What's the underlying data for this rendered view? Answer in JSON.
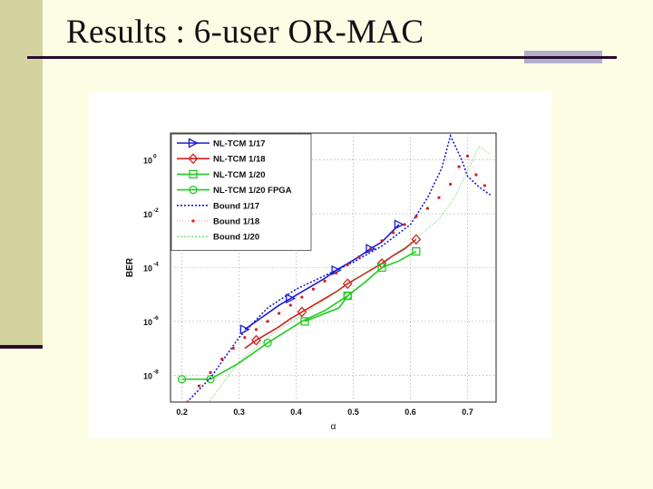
{
  "slide": {
    "title": "Results : 6-user OR-MAC"
  },
  "chart_data": {
    "type": "line",
    "xlabel": "α",
    "ylabel": "BER",
    "xlim": [
      0.18,
      0.75
    ],
    "ylim_log10": [
      -9,
      1
    ],
    "y_scale": "log",
    "grid": true,
    "legend_placement": "top-left",
    "x_ticks": [
      0.2,
      0.3,
      0.4,
      0.5,
      0.6,
      0.7
    ],
    "x_tick_labels": [
      "0.2",
      "0.3",
      "0.4",
      "0.5",
      "0.6",
      "0.7"
    ],
    "y_ticks_log10": [
      0,
      -2,
      -4,
      -6,
      -8
    ],
    "y_tick_labels": [
      {
        "base": "10",
        "exp": "0"
      },
      {
        "base": "10",
        "exp": "-2"
      },
      {
        "base": "10",
        "exp": "-4"
      },
      {
        "base": "10",
        "exp": "-6"
      },
      {
        "base": "10",
        "exp": "-8"
      }
    ],
    "series": [
      {
        "name": "NL-TCM 1/17",
        "color": "#1a1ad0",
        "style": "solid",
        "marker": "triangle-right",
        "x": [
          0.31,
          0.33,
          0.35,
          0.37,
          0.39,
          0.41,
          0.43,
          0.45,
          0.47,
          0.49,
          0.51,
          0.53,
          0.55,
          0.58
        ],
        "log10_y": [
          -6.3,
          -6.0,
          -5.7,
          -5.4,
          -5.15,
          -4.9,
          -4.65,
          -4.4,
          -4.1,
          -3.85,
          -3.6,
          -3.3,
          -3.05,
          -2.4
        ],
        "marker_x": [
          0.31,
          0.39,
          0.47,
          0.53,
          0.58
        ]
      },
      {
        "name": "NL-TCM 1/18",
        "color": "#d02020",
        "style": "solid",
        "marker": "diamond",
        "x": [
          0.31,
          0.33,
          0.35,
          0.37,
          0.39,
          0.41,
          0.43,
          0.45,
          0.47,
          0.49,
          0.51,
          0.53,
          0.55,
          0.57,
          0.59,
          0.61
        ],
        "log10_y": [
          -7.0,
          -6.7,
          -6.45,
          -6.2,
          -5.9,
          -5.65,
          -5.4,
          -5.15,
          -4.9,
          -4.6,
          -4.35,
          -4.1,
          -3.85,
          -3.55,
          -3.3,
          -2.95
        ],
        "marker_x": [
          0.33,
          0.41,
          0.49,
          0.55,
          0.61
        ]
      },
      {
        "name": "NL-TCM 1/20",
        "color": "#20cc20",
        "style": "solid",
        "marker": "square",
        "x": [
          0.415,
          0.445,
          0.475,
          0.49,
          0.52,
          0.55,
          0.58,
          0.61
        ],
        "log10_y": [
          -6.0,
          -5.75,
          -5.5,
          -5.05,
          -4.55,
          -4.0,
          -3.75,
          -3.4
        ],
        "marker_x": [
          0.415,
          0.49,
          0.55,
          0.61
        ]
      },
      {
        "name": "NL-TCM 1/20 FPGA",
        "color": "#20cc20",
        "style": "solid",
        "marker": "circle",
        "x": [
          0.2,
          0.25,
          0.3,
          0.35,
          0.41,
          0.45,
          0.49
        ],
        "log10_y": [
          -8.15,
          -8.15,
          -7.55,
          -6.8,
          -6.0,
          -5.6,
          -5.05
        ],
        "marker_x": [
          0.2,
          0.25,
          0.35,
          0.49
        ]
      },
      {
        "name": "Bound 1/17",
        "color": "#1a1ad0",
        "style": "dotted",
        "marker": "none",
        "x": [
          0.2,
          0.25,
          0.3,
          0.35,
          0.4,
          0.45,
          0.5,
          0.55,
          0.6,
          0.63,
          0.655,
          0.67,
          0.69,
          0.7,
          0.72,
          0.74
        ],
        "log10_y": [
          -9.2,
          -8.1,
          -6.6,
          -5.5,
          -4.8,
          -4.3,
          -3.8,
          -3.2,
          -2.4,
          -1.4,
          -0.3,
          0.9,
          0.0,
          -0.6,
          -1.0,
          -1.3
        ],
        "marker_x": []
      },
      {
        "name": "Bound 1/18",
        "color": "#d02020",
        "style": "dots",
        "marker": "dot",
        "x": [
          0.21,
          0.23,
          0.25,
          0.27,
          0.29,
          0.31,
          0.33,
          0.35,
          0.37,
          0.39,
          0.41,
          0.43,
          0.45,
          0.47,
          0.49,
          0.51,
          0.53,
          0.55,
          0.57,
          0.59,
          0.61,
          0.63,
          0.65,
          0.67,
          0.685,
          0.7,
          0.715,
          0.73
        ],
        "log10_y": [
          -9.0,
          -8.4,
          -7.9,
          -7.4,
          -7.0,
          -6.6,
          -6.3,
          -6.0,
          -5.7,
          -5.4,
          -5.1,
          -4.8,
          -4.5,
          -4.2,
          -3.9,
          -3.6,
          -3.3,
          -3.0,
          -2.7,
          -2.4,
          -2.1,
          -1.8,
          -1.4,
          -0.9,
          -0.25,
          0.15,
          -0.55,
          -0.95
        ],
        "marker_x": []
      },
      {
        "name": "Bound 1/20",
        "color": "#20cc20",
        "style": "dotted",
        "marker": "none",
        "x": [
          0.24,
          0.3,
          0.35,
          0.4,
          0.45,
          0.5,
          0.55,
          0.6,
          0.65,
          0.68,
          0.7,
          0.72,
          0.74
        ],
        "log10_y": [
          -9.2,
          -7.5,
          -6.6,
          -5.9,
          -5.2,
          -4.5,
          -3.8,
          -3.1,
          -2.2,
          -1.3,
          -0.4,
          0.5,
          0.2
        ],
        "marker_x": []
      }
    ]
  }
}
